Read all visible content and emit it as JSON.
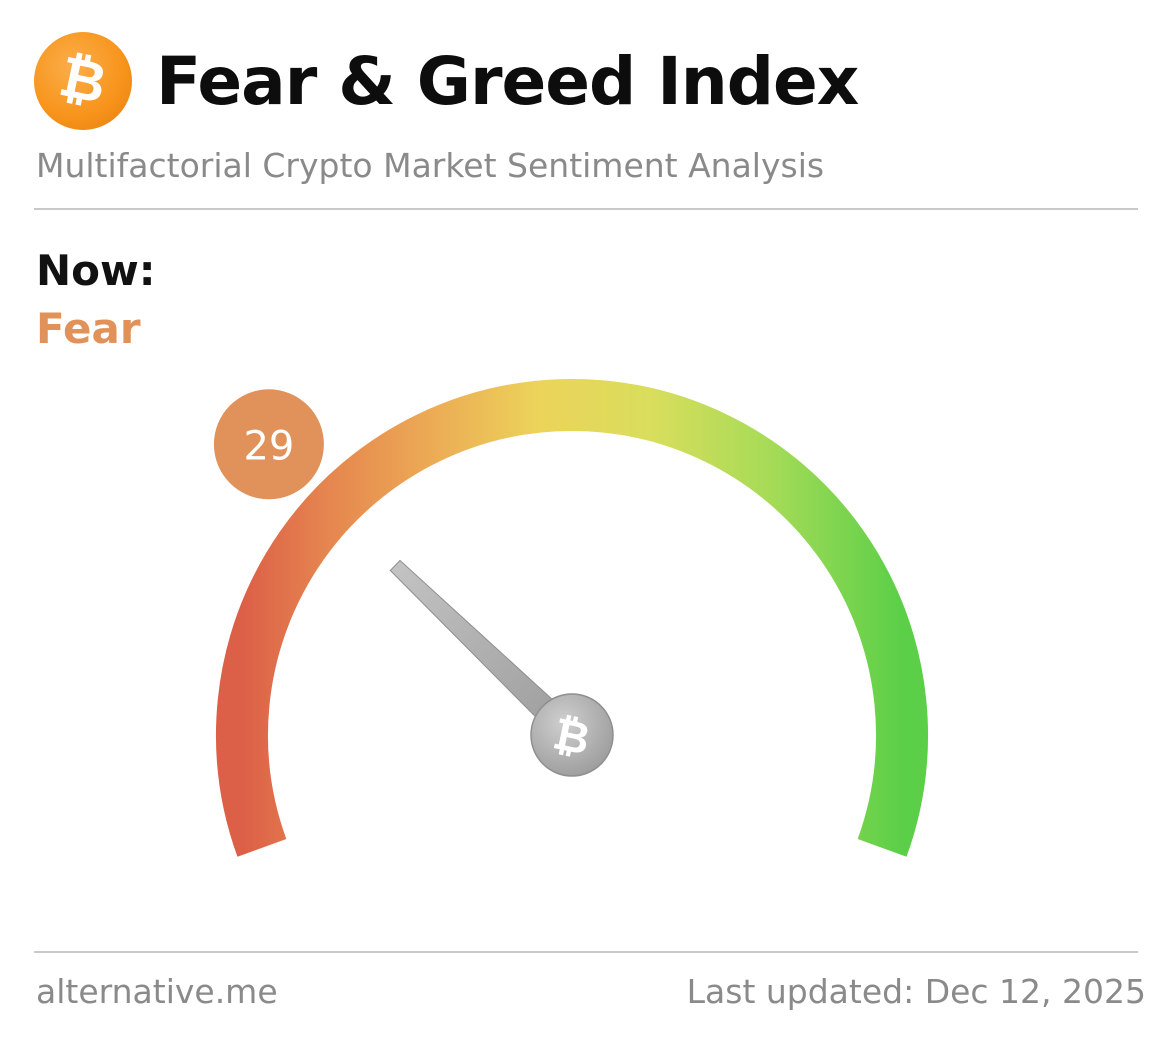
{
  "header": {
    "logo_glyph": "₿",
    "logo_icon": "bitcoin-icon",
    "title": "Fear & Greed Index",
    "subtitle": "Multifactorial Crypto Market Sentiment Analysis"
  },
  "current": {
    "label": "Now:",
    "classification": "Fear",
    "value": 29,
    "value_text": "29",
    "classification_color": "#e0925a"
  },
  "gauge": {
    "min": 0,
    "max": 100,
    "hub_glyph": "₿",
    "hub_icon": "bitcoin-icon",
    "colors": {
      "extreme_fear": "#dc5f47",
      "fear": "#eb9a52",
      "neutral": "#ecd35a",
      "greed": "#c7df5c",
      "extreme_greed": "#5bcf48",
      "needle": "#a9a9a9",
      "badge": "#e0925a"
    }
  },
  "footer": {
    "source": "alternative.me",
    "last_updated": "Last updated: Dec 12, 2025"
  }
}
